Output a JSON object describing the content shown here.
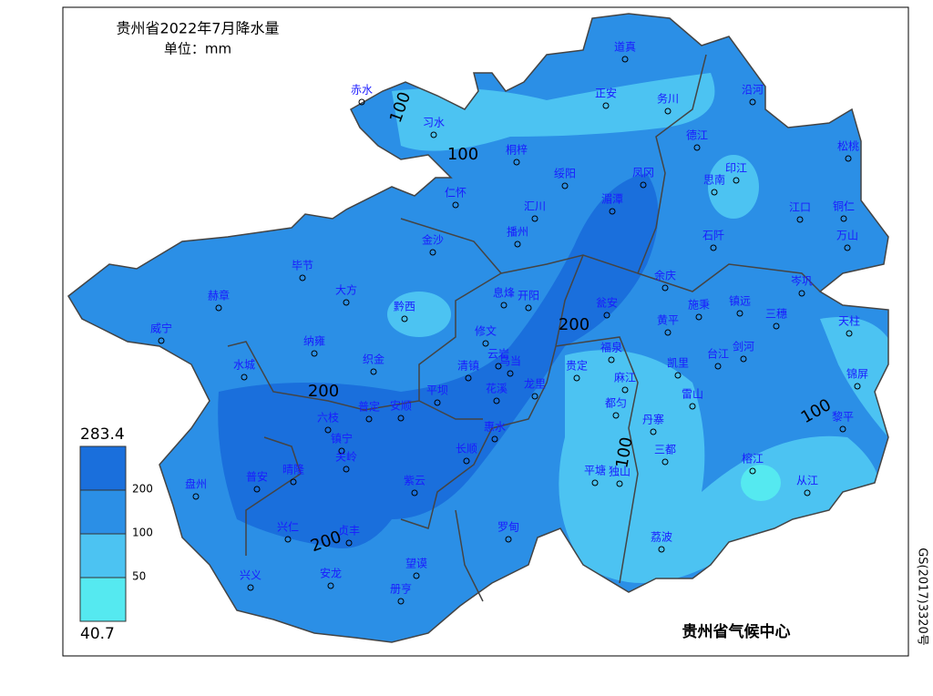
{
  "header": {
    "title": "贵州省2022年7月降水量",
    "unit": "单位：mm"
  },
  "stations": [
    "道真",
    "赤水",
    "习水",
    "正安",
    "务川",
    "沿河",
    "德江",
    "桐梓",
    "绥阳",
    "凤冈",
    "印江",
    "思南",
    "松桃",
    "仁怀",
    "汇川",
    "湄潭",
    "江口",
    "铜仁",
    "播州",
    "石阡",
    "万山",
    "金沙",
    "毕节",
    "大方",
    "赫章",
    "黔西",
    "息烽",
    "开阳",
    "余庆",
    "岑巩",
    "施秉",
    "镇远",
    "三穗",
    "瓮安",
    "黄平",
    "天柱",
    "威宁",
    "修文",
    "纳雍",
    "福泉",
    "台江",
    "剑河",
    "云岩",
    "乌当",
    "清镇",
    "织金",
    "水城",
    "贵定",
    "凯里",
    "锦屏",
    "龙里",
    "麻江",
    "花溪",
    "平坝",
    "雷山",
    "都匀",
    "普定",
    "安顺",
    "六枝",
    "丹寨",
    "惠水",
    "黎平",
    "镇宁",
    "长顺",
    "三都",
    "关岭",
    "榕江",
    "晴隆",
    "普安",
    "盘州",
    "紫云",
    "平塘",
    "独山",
    "从江",
    "罗甸",
    "兴仁",
    "贞丰",
    "荔波",
    "望谟",
    "兴义",
    "安龙",
    "册亨"
  ],
  "contour_labels": [
    "100",
    "100",
    "200",
    "200",
    "100",
    "100",
    "200"
  ],
  "legend": {
    "max": "283.4",
    "ticks": [
      "200",
      "100",
      "50"
    ],
    "min": "40.7"
  },
  "footer": {
    "credit": "贵州省气候中心",
    "approval": "GS(2017)3320号"
  }
}
